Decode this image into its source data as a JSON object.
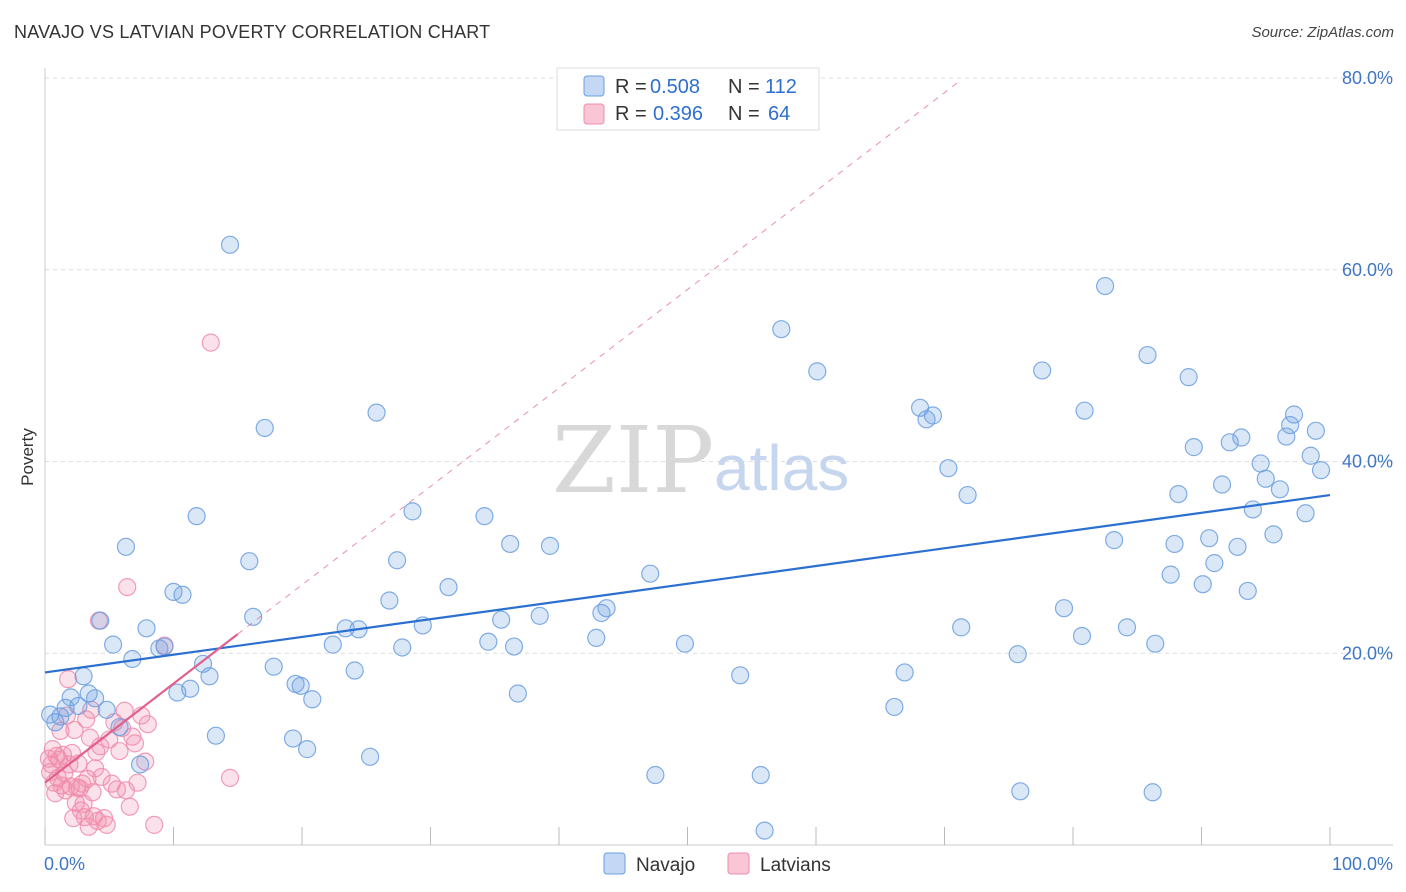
{
  "header": {
    "title": "NAVAJO VS LATVIAN POVERTY CORRELATION CHART",
    "source": "Source: ZipAtlas.com"
  },
  "colors": {
    "navajo": "#6b9fe0",
    "navajo_line": "#2b6fd0",
    "latvians": "#f08cab",
    "latvians_line": "#e0608e",
    "grid": "#dddddd",
    "tick_label": "#3f76c8"
  },
  "legend": {
    "rows": [
      {
        "r_label": "R =",
        "r_value": "0.508",
        "n_label": "N =",
        "n_value": "112"
      },
      {
        "r_label": "R =",
        "r_value": "0.396",
        "n_label": "N =",
        "n_value": "64"
      }
    ]
  },
  "watermark": {
    "part1": "ZIP",
    "part2": "atlas"
  },
  "chart_data": {
    "type": "scatter",
    "xlabel": "",
    "ylabel": "Poverty",
    "xlim": [
      0,
      100
    ],
    "ylim": [
      0,
      80
    ],
    "x_tick_labels": [
      "0.0%",
      "100.0%"
    ],
    "y_ticks": [
      20,
      40,
      60,
      80
    ],
    "y_tick_labels": [
      "20.0%",
      "40.0%",
      "60.0%",
      "80.0%"
    ],
    "grid": true,
    "legend_position": "top-center",
    "series": [
      {
        "name": "Navajo",
        "r": 0.508,
        "n": 112,
        "trend": {
          "x0": 0,
          "y0": 18.0,
          "x1": 100,
          "y1": 36.5
        },
        "points": [
          [
            0.4,
            13.6
          ],
          [
            0.8,
            12.8
          ],
          [
            1.2,
            13.4
          ],
          [
            1.6,
            14.3
          ],
          [
            2.0,
            15.4
          ],
          [
            2.6,
            14.5
          ],
          [
            3.0,
            17.6
          ],
          [
            3.4,
            15.8
          ],
          [
            3.9,
            15.3
          ],
          [
            4.3,
            23.4
          ],
          [
            4.8,
            14.1
          ],
          [
            5.3,
            20.9
          ],
          [
            5.8,
            12.3
          ],
          [
            6.3,
            31.1
          ],
          [
            6.8,
            19.4
          ],
          [
            7.4,
            8.4
          ],
          [
            7.9,
            22.6
          ],
          [
            8.9,
            20.5
          ],
          [
            9.3,
            20.7
          ],
          [
            10.0,
            26.4
          ],
          [
            10.3,
            15.9
          ],
          [
            10.7,
            26.1
          ],
          [
            11.3,
            16.3
          ],
          [
            11.8,
            34.3
          ],
          [
            12.3,
            18.9
          ],
          [
            12.8,
            17.6
          ],
          [
            13.3,
            11.4
          ],
          [
            14.4,
            62.6
          ],
          [
            15.9,
            29.6
          ],
          [
            16.2,
            23.8
          ],
          [
            17.1,
            43.5
          ],
          [
            17.8,
            18.6
          ],
          [
            19.3,
            11.1
          ],
          [
            19.5,
            16.8
          ],
          [
            19.9,
            16.6
          ],
          [
            20.4,
            10.0
          ],
          [
            20.8,
            15.2
          ],
          [
            22.4,
            20.9
          ],
          [
            23.4,
            22.6
          ],
          [
            24.1,
            18.2
          ],
          [
            24.4,
            22.5
          ],
          [
            25.3,
            9.2
          ],
          [
            25.8,
            45.1
          ],
          [
            26.8,
            25.5
          ],
          [
            27.4,
            29.7
          ],
          [
            27.8,
            20.6
          ],
          [
            28.6,
            34.8
          ],
          [
            29.4,
            22.9
          ],
          [
            31.4,
            26.9
          ],
          [
            34.2,
            34.3
          ],
          [
            34.5,
            21.2
          ],
          [
            35.5,
            23.5
          ],
          [
            36.2,
            31.4
          ],
          [
            36.5,
            20.7
          ],
          [
            36.8,
            15.8
          ],
          [
            38.5,
            23.9
          ],
          [
            39.3,
            31.2
          ],
          [
            42.9,
            21.6
          ],
          [
            43.3,
            24.2
          ],
          [
            43.7,
            24.7
          ],
          [
            47.1,
            28.3
          ],
          [
            47.5,
            7.3
          ],
          [
            49.8,
            21.0
          ],
          [
            54.1,
            17.7
          ],
          [
            55.7,
            7.3
          ],
          [
            56.0,
            1.5
          ],
          [
            57.3,
            53.8
          ],
          [
            60.1,
            49.4
          ],
          [
            66.1,
            14.4
          ],
          [
            66.9,
            18.0
          ],
          [
            68.1,
            45.6
          ],
          [
            68.6,
            44.4
          ],
          [
            69.1,
            44.8
          ],
          [
            70.3,
            39.3
          ],
          [
            71.3,
            22.7
          ],
          [
            71.8,
            36.5
          ],
          [
            75.7,
            19.9
          ],
          [
            75.9,
            5.6
          ],
          [
            77.6,
            49.5
          ],
          [
            79.3,
            24.7
          ],
          [
            80.7,
            21.8
          ],
          [
            80.9,
            45.3
          ],
          [
            82.5,
            58.3
          ],
          [
            83.2,
            31.8
          ],
          [
            84.2,
            22.7
          ],
          [
            85.8,
            51.1
          ],
          [
            86.2,
            5.5
          ],
          [
            86.4,
            21.0
          ],
          [
            87.6,
            28.2
          ],
          [
            87.9,
            31.4
          ],
          [
            88.2,
            36.6
          ],
          [
            89.0,
            48.8
          ],
          [
            89.4,
            41.5
          ],
          [
            90.1,
            27.2
          ],
          [
            90.6,
            32.0
          ],
          [
            91.0,
            29.4
          ],
          [
            91.6,
            37.6
          ],
          [
            92.2,
            42.0
          ],
          [
            92.8,
            31.1
          ],
          [
            93.1,
            42.5
          ],
          [
            93.6,
            26.5
          ],
          [
            94.0,
            35.0
          ],
          [
            94.6,
            39.8
          ],
          [
            95.0,
            38.2
          ],
          [
            95.6,
            32.4
          ],
          [
            96.1,
            37.1
          ],
          [
            96.6,
            42.6
          ],
          [
            96.9,
            43.8
          ],
          [
            97.2,
            44.9
          ],
          [
            98.1,
            34.6
          ],
          [
            98.5,
            40.6
          ],
          [
            98.9,
            43.2
          ],
          [
            99.3,
            39.1
          ]
        ]
      },
      {
        "name": "Latvians",
        "r": 0.396,
        "n": 64,
        "trend": {
          "x0": 0,
          "y0": 6.5,
          "x1": 15,
          "y1": 22.0
        },
        "dashed_extension": {
          "x0": 15,
          "y0": 22.0,
          "x1": 71,
          "y1": 79.5
        },
        "points": [
          [
            0.3,
            9.0
          ],
          [
            0.4,
            7.6
          ],
          [
            0.5,
            8.4
          ],
          [
            0.6,
            10.0
          ],
          [
            0.7,
            6.5
          ],
          [
            0.8,
            5.4
          ],
          [
            0.9,
            9.3
          ],
          [
            1.0,
            7.0
          ],
          [
            1.1,
            8.9
          ],
          [
            1.2,
            11.9
          ],
          [
            1.3,
            6.2
          ],
          [
            1.4,
            9.4
          ],
          [
            1.5,
            7.5
          ],
          [
            1.6,
            5.7
          ],
          [
            1.7,
            13.5
          ],
          [
            1.8,
            17.3
          ],
          [
            1.9,
            8.4
          ],
          [
            2.0,
            6.1
          ],
          [
            2.1,
            9.6
          ],
          [
            2.2,
            2.8
          ],
          [
            2.3,
            12.0
          ],
          [
            2.4,
            4.4
          ],
          [
            2.5,
            6.0
          ],
          [
            2.6,
            8.5
          ],
          [
            2.7,
            5.9
          ],
          [
            2.8,
            3.6
          ],
          [
            2.9,
            6.4
          ],
          [
            3.0,
            4.3
          ],
          [
            3.1,
            2.9
          ],
          [
            3.2,
            13.1
          ],
          [
            3.3,
            6.9
          ],
          [
            3.4,
            1.9
          ],
          [
            3.5,
            11.2
          ],
          [
            3.6,
            14.1
          ],
          [
            3.7,
            5.5
          ],
          [
            3.8,
            3.0
          ],
          [
            3.9,
            8.0
          ],
          [
            4.0,
            9.7
          ],
          [
            4.1,
            2.5
          ],
          [
            4.2,
            23.4
          ],
          [
            4.3,
            10.3
          ],
          [
            4.4,
            7.1
          ],
          [
            4.6,
            2.8
          ],
          [
            4.8,
            2.1
          ],
          [
            5.0,
            11.0
          ],
          [
            5.2,
            6.4
          ],
          [
            5.4,
            12.8
          ],
          [
            5.6,
            5.8
          ],
          [
            5.8,
            9.8
          ],
          [
            6.0,
            12.2
          ],
          [
            6.2,
            14.0
          ],
          [
            6.3,
            5.7
          ],
          [
            6.4,
            26.9
          ],
          [
            6.6,
            4.0
          ],
          [
            6.8,
            11.3
          ],
          [
            7.0,
            10.6
          ],
          [
            7.2,
            6.5
          ],
          [
            7.5,
            13.5
          ],
          [
            7.8,
            8.7
          ],
          [
            8.0,
            12.6
          ],
          [
            8.5,
            2.1
          ],
          [
            9.3,
            20.8
          ],
          [
            12.9,
            52.4
          ],
          [
            14.4,
            7.0
          ]
        ]
      }
    ]
  },
  "bottom_legend": {
    "items": [
      "Navajo",
      "Latvians"
    ]
  }
}
